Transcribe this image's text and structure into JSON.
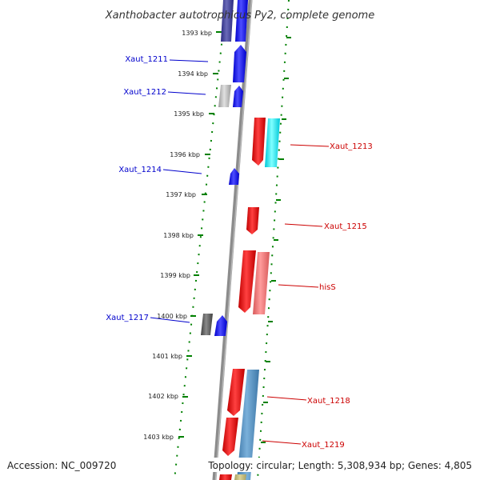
{
  "title": "Xanthobacter autotrophicus Py2, complete genome",
  "footer": {
    "accession": "Accession: NC_009720",
    "summary": "Topology: circular; Length: 5,308,934 bp; Genes: 4,805"
  },
  "colors": {
    "leading_strand": "#0000ff",
    "lagging_strand": "#ff0000",
    "ticks": "#008000",
    "backbone": "#808080"
  },
  "scale_labels": [
    "1393 kbp",
    "1394 kbp",
    "1395 kbp",
    "1396 kbp",
    "1397 kbp",
    "1398 kbp",
    "1399 kbp",
    "1400 kbp",
    "1401 kbp",
    "1402 kbp",
    "1403 kbp"
  ],
  "genes": [
    {
      "name": "Xaut_1211",
      "strand": "leading"
    },
    {
      "name": "Xaut_1212",
      "strand": "leading"
    },
    {
      "name": "Xaut_1213",
      "strand": "lagging"
    },
    {
      "name": "Xaut_1214",
      "strand": "leading"
    },
    {
      "name": "Xaut_1215",
      "strand": "lagging"
    },
    {
      "name": "hisS",
      "strand": "lagging"
    },
    {
      "name": "Xaut_1217",
      "strand": "leading"
    },
    {
      "name": "Xaut_1218",
      "strand": "lagging"
    },
    {
      "name": "Xaut_1219",
      "strand": "lagging"
    }
  ]
}
